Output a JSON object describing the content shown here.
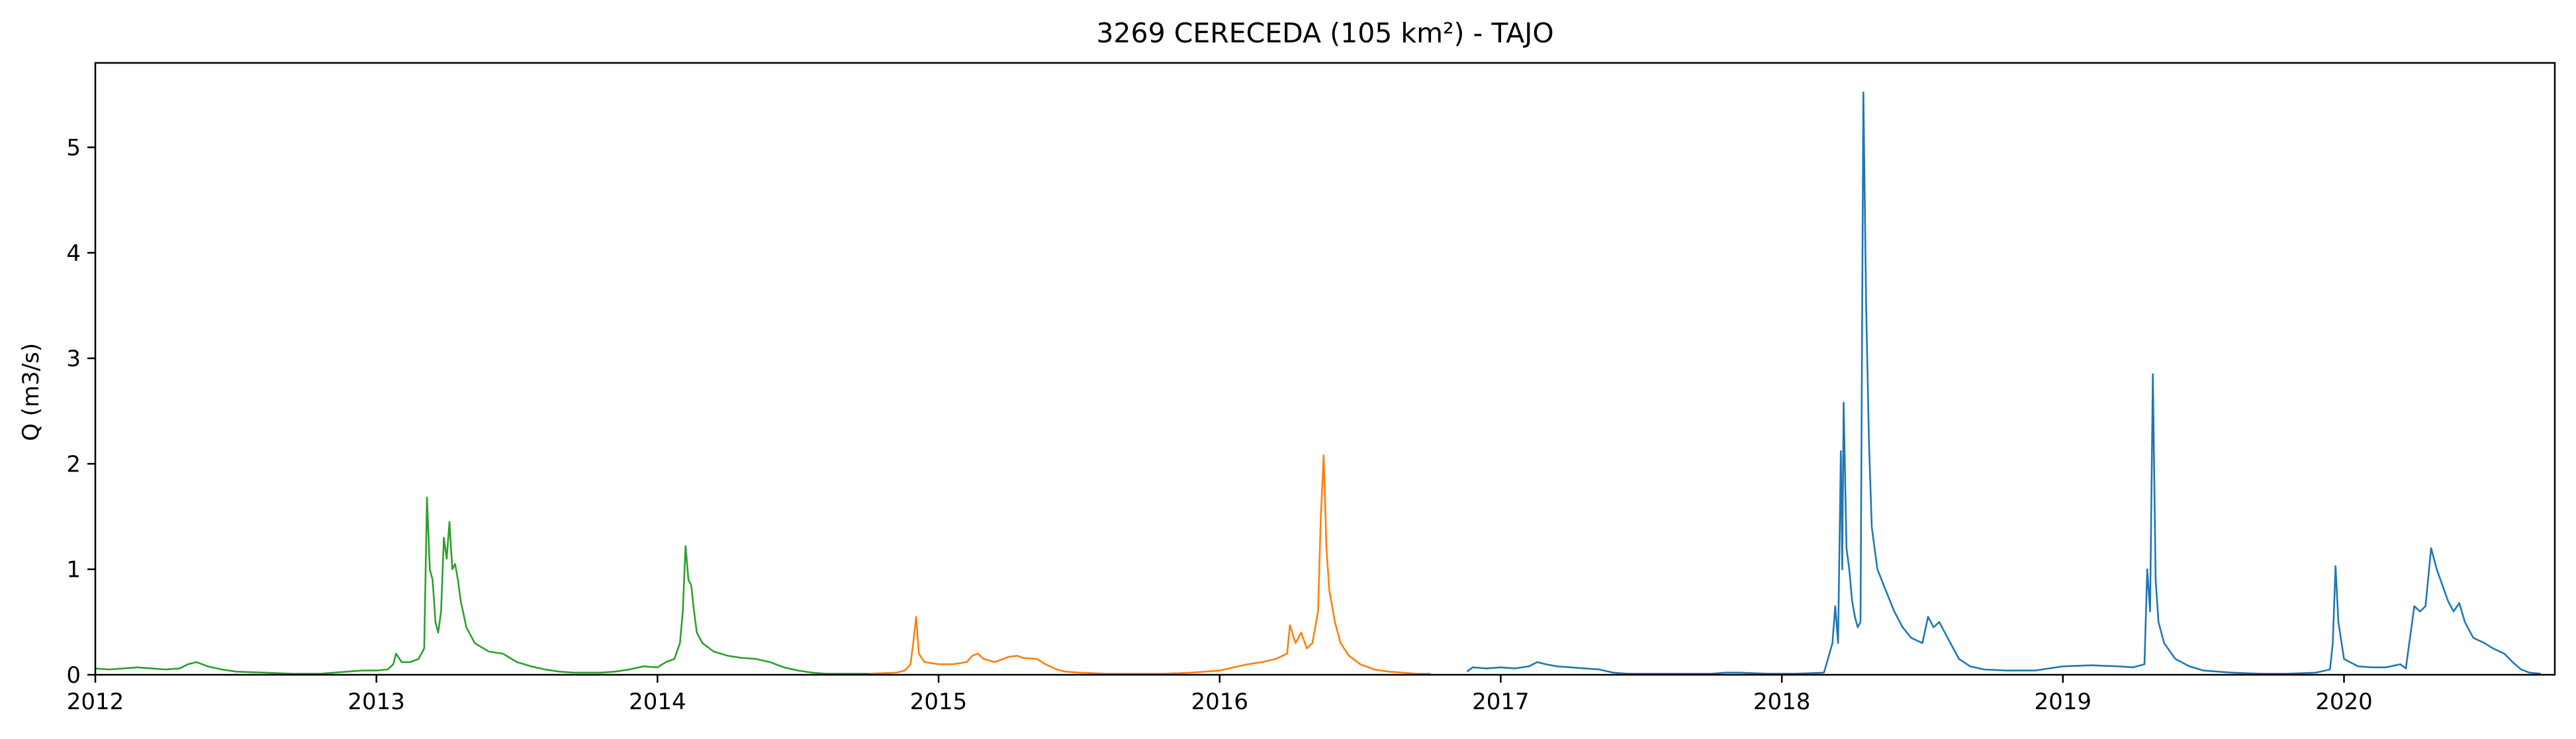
{
  "chart_data": {
    "type": "line",
    "title": "3269 CERECEDA (105 km²) - TAJO",
    "xlabel": "",
    "ylabel": "Q (m3/s)",
    "xlim": [
      2012.0,
      2020.75
    ],
    "ylim": [
      0,
      5.8
    ],
    "x_ticks": [
      "2012",
      "2013",
      "2014",
      "2015",
      "2016",
      "2017",
      "2018",
      "2019",
      "2020"
    ],
    "y_ticks": [
      "0",
      "1",
      "2",
      "3",
      "4",
      "5"
    ],
    "grid": false,
    "series": [
      {
        "color": "#2ca02c",
        "points": [
          [
            2012.0,
            0.06
          ],
          [
            2012.05,
            0.05
          ],
          [
            2012.1,
            0.06
          ],
          [
            2012.15,
            0.07
          ],
          [
            2012.2,
            0.06
          ],
          [
            2012.25,
            0.05
          ],
          [
            2012.3,
            0.06
          ],
          [
            2012.33,
            0.1
          ],
          [
            2012.36,
            0.12
          ],
          [
            2012.4,
            0.08
          ],
          [
            2012.45,
            0.05
          ],
          [
            2012.5,
            0.03
          ],
          [
            2012.6,
            0.02
          ],
          [
            2012.7,
            0.01
          ],
          [
            2012.8,
            0.01
          ],
          [
            2012.85,
            0.02
          ],
          [
            2012.9,
            0.03
          ],
          [
            2012.95,
            0.04
          ],
          [
            2013.0,
            0.04
          ],
          [
            2013.04,
            0.05
          ],
          [
            2013.06,
            0.1
          ],
          [
            2013.07,
            0.2
          ],
          [
            2013.09,
            0.12
          ],
          [
            2013.12,
            0.12
          ],
          [
            2013.15,
            0.15
          ],
          [
            2013.17,
            0.25
          ],
          [
            2013.18,
            1.68
          ],
          [
            2013.19,
            1.0
          ],
          [
            2013.2,
            0.9
          ],
          [
            2013.21,
            0.5
          ],
          [
            2013.22,
            0.4
          ],
          [
            2013.23,
            0.6
          ],
          [
            2013.24,
            1.3
          ],
          [
            2013.25,
            1.1
          ],
          [
            2013.26,
            1.45
          ],
          [
            2013.27,
            1.0
          ],
          [
            2013.28,
            1.05
          ],
          [
            2013.29,
            0.9
          ],
          [
            2013.3,
            0.7
          ],
          [
            2013.32,
            0.45
          ],
          [
            2013.35,
            0.3
          ],
          [
            2013.4,
            0.22
          ],
          [
            2013.45,
            0.2
          ],
          [
            2013.5,
            0.12
          ],
          [
            2013.55,
            0.08
          ],
          [
            2013.6,
            0.05
          ],
          [
            2013.65,
            0.03
          ],
          [
            2013.7,
            0.02
          ],
          [
            2013.8,
            0.02
          ],
          [
            2013.85,
            0.03
          ],
          [
            2013.9,
            0.05
          ],
          [
            2013.95,
            0.08
          ],
          [
            2014.0,
            0.07
          ],
          [
            2014.03,
            0.12
          ],
          [
            2014.06,
            0.15
          ],
          [
            2014.08,
            0.3
          ],
          [
            2014.09,
            0.6
          ],
          [
            2014.1,
            1.22
          ],
          [
            2014.11,
            0.9
          ],
          [
            2014.12,
            0.85
          ],
          [
            2014.13,
            0.6
          ],
          [
            2014.14,
            0.4
          ],
          [
            2014.16,
            0.3
          ],
          [
            2014.2,
            0.22
          ],
          [
            2014.25,
            0.18
          ],
          [
            2014.3,
            0.16
          ],
          [
            2014.35,
            0.15
          ],
          [
            2014.4,
            0.12
          ],
          [
            2014.45,
            0.07
          ],
          [
            2014.5,
            0.04
          ],
          [
            2014.55,
            0.02
          ],
          [
            2014.6,
            0.01
          ],
          [
            2014.7,
            0.01
          ],
          [
            2014.75,
            0.01
          ]
        ]
      },
      {
        "color": "#ff7f0e",
        "points": [
          [
            2014.75,
            0.01
          ],
          [
            2014.85,
            0.02
          ],
          [
            2014.88,
            0.04
          ],
          [
            2014.9,
            0.1
          ],
          [
            2014.91,
            0.3
          ],
          [
            2014.92,
            0.55
          ],
          [
            2014.93,
            0.2
          ],
          [
            2014.95,
            0.12
          ],
          [
            2015.0,
            0.1
          ],
          [
            2015.05,
            0.1
          ],
          [
            2015.1,
            0.12
          ],
          [
            2015.12,
            0.18
          ],
          [
            2015.14,
            0.2
          ],
          [
            2015.16,
            0.15
          ],
          [
            2015.2,
            0.12
          ],
          [
            2015.25,
            0.17
          ],
          [
            2015.28,
            0.18
          ],
          [
            2015.3,
            0.16
          ],
          [
            2015.35,
            0.15
          ],
          [
            2015.38,
            0.1
          ],
          [
            2015.42,
            0.05
          ],
          [
            2015.45,
            0.03
          ],
          [
            2015.5,
            0.02
          ],
          [
            2015.6,
            0.01
          ],
          [
            2015.7,
            0.01
          ],
          [
            2015.8,
            0.01
          ],
          [
            2015.9,
            0.02
          ],
          [
            2016.0,
            0.04
          ],
          [
            2016.05,
            0.07
          ],
          [
            2016.1,
            0.1
          ],
          [
            2016.15,
            0.12
          ],
          [
            2016.2,
            0.15
          ],
          [
            2016.24,
            0.2
          ],
          [
            2016.25,
            0.47
          ],
          [
            2016.27,
            0.3
          ],
          [
            2016.29,
            0.4
          ],
          [
            2016.31,
            0.25
          ],
          [
            2016.33,
            0.3
          ],
          [
            2016.35,
            0.6
          ],
          [
            2016.36,
            1.5
          ],
          [
            2016.37,
            2.08
          ],
          [
            2016.38,
            1.2
          ],
          [
            2016.39,
            0.8
          ],
          [
            2016.41,
            0.5
          ],
          [
            2016.43,
            0.3
          ],
          [
            2016.46,
            0.18
          ],
          [
            2016.5,
            0.1
          ],
          [
            2016.55,
            0.05
          ],
          [
            2016.6,
            0.03
          ],
          [
            2016.65,
            0.02
          ],
          [
            2016.7,
            0.01
          ],
          [
            2016.75,
            0.01
          ]
        ]
      },
      {
        "color": "#1f77b4",
        "points": [
          [
            2016.88,
            0.03
          ],
          [
            2016.9,
            0.07
          ],
          [
            2016.95,
            0.06
          ],
          [
            2017.0,
            0.07
          ],
          [
            2017.05,
            0.06
          ],
          [
            2017.1,
            0.08
          ],
          [
            2017.13,
            0.12
          ],
          [
            2017.16,
            0.1
          ],
          [
            2017.2,
            0.08
          ],
          [
            2017.25,
            0.07
          ],
          [
            2017.3,
            0.06
          ],
          [
            2017.35,
            0.05
          ],
          [
            2017.4,
            0.02
          ],
          [
            2017.45,
            0.01
          ],
          [
            2017.55,
            0.01
          ],
          [
            2017.65,
            0.01
          ],
          [
            2017.75,
            0.01
          ],
          [
            2017.8,
            0.02
          ],
          [
            2017.85,
            0.02
          ],
          [
            2017.95,
            0.01
          ],
          [
            2018.05,
            0.01
          ],
          [
            2018.15,
            0.02
          ],
          [
            2018.18,
            0.3
          ],
          [
            2018.19,
            0.65
          ],
          [
            2018.2,
            0.3
          ],
          [
            2018.21,
            2.12
          ],
          [
            2018.215,
            1.0
          ],
          [
            2018.22,
            2.58
          ],
          [
            2018.23,
            1.2
          ],
          [
            2018.24,
            1.0
          ],
          [
            2018.25,
            0.7
          ],
          [
            2018.26,
            0.55
          ],
          [
            2018.27,
            0.45
          ],
          [
            2018.28,
            0.5
          ],
          [
            2018.29,
            5.52
          ],
          [
            2018.3,
            3.5
          ],
          [
            2018.31,
            2.2
          ],
          [
            2018.32,
            1.4
          ],
          [
            2018.34,
            1.0
          ],
          [
            2018.37,
            0.8
          ],
          [
            2018.4,
            0.6
          ],
          [
            2018.43,
            0.45
          ],
          [
            2018.46,
            0.35
          ],
          [
            2018.5,
            0.3
          ],
          [
            2018.52,
            0.55
          ],
          [
            2018.54,
            0.45
          ],
          [
            2018.56,
            0.5
          ],
          [
            2018.58,
            0.4
          ],
          [
            2018.6,
            0.3
          ],
          [
            2018.63,
            0.15
          ],
          [
            2018.67,
            0.08
          ],
          [
            2018.72,
            0.05
          ],
          [
            2018.8,
            0.04
          ],
          [
            2018.9,
            0.04
          ],
          [
            2019.0,
            0.08
          ],
          [
            2019.1,
            0.09
          ],
          [
            2019.2,
            0.08
          ],
          [
            2019.25,
            0.07
          ],
          [
            2019.29,
            0.1
          ],
          [
            2019.3,
            1.0
          ],
          [
            2019.31,
            0.6
          ],
          [
            2019.32,
            2.85
          ],
          [
            2019.33,
            0.9
          ],
          [
            2019.34,
            0.5
          ],
          [
            2019.36,
            0.3
          ],
          [
            2019.4,
            0.15
          ],
          [
            2019.45,
            0.08
          ],
          [
            2019.5,
            0.04
          ],
          [
            2019.6,
            0.02
          ],
          [
            2019.7,
            0.01
          ],
          [
            2019.8,
            0.01
          ],
          [
            2019.9,
            0.02
          ],
          [
            2019.95,
            0.05
          ],
          [
            2019.96,
            0.3
          ],
          [
            2019.97,
            1.03
          ],
          [
            2019.98,
            0.5
          ],
          [
            2020.0,
            0.15
          ],
          [
            2020.05,
            0.08
          ],
          [
            2020.1,
            0.07
          ],
          [
            2020.15,
            0.07
          ],
          [
            2020.2,
            0.1
          ],
          [
            2020.22,
            0.06
          ],
          [
            2020.25,
            0.65
          ],
          [
            2020.27,
            0.6
          ],
          [
            2020.29,
            0.65
          ],
          [
            2020.31,
            1.2
          ],
          [
            2020.33,
            1.0
          ],
          [
            2020.35,
            0.85
          ],
          [
            2020.37,
            0.7
          ],
          [
            2020.39,
            0.6
          ],
          [
            2020.41,
            0.68
          ],
          [
            2020.43,
            0.5
          ],
          [
            2020.46,
            0.35
          ],
          [
            2020.5,
            0.3
          ],
          [
            2020.53,
            0.25
          ],
          [
            2020.57,
            0.2
          ],
          [
            2020.6,
            0.12
          ],
          [
            2020.63,
            0.05
          ],
          [
            2020.66,
            0.02
          ],
          [
            2020.7,
            0.01
          ]
        ]
      }
    ]
  }
}
